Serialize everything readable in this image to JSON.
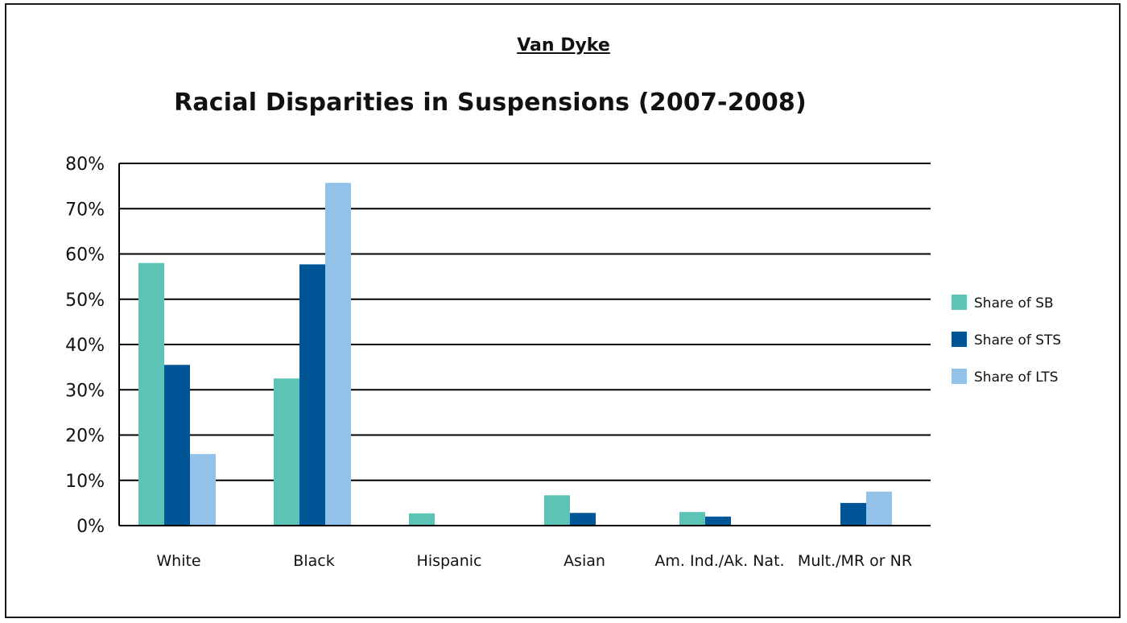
{
  "header": {
    "supertitle": "Van Dyke"
  },
  "chart_data": {
    "type": "bar",
    "title": "Racial Disparities in Suspensions (2007-2008)",
    "xlabel": "",
    "ylabel": "",
    "ylim": [
      0,
      80
    ],
    "yticks": [
      "0%",
      "10%",
      "20%",
      "30%",
      "40%",
      "50%",
      "60%",
      "70%",
      "80%"
    ],
    "grid": true,
    "legend_position": "right",
    "categories": [
      "White",
      "Black",
      "Hispanic",
      "Asian",
      "Am. Ind./Ak. Nat.",
      "Mult./MR or NR"
    ],
    "series": [
      {
        "name": "Share of SB",
        "color": "#5bc4b6",
        "values": [
          58,
          32.5,
          2.7,
          6.7,
          3.0,
          0
        ]
      },
      {
        "name": "Share of STS",
        "color": "#005596",
        "values": [
          35.5,
          57.7,
          0,
          2.8,
          2.0,
          5.0
        ]
      },
      {
        "name": "Share of LTS",
        "color": "#92c1e9",
        "values": [
          15.8,
          75.7,
          0,
          0,
          0,
          7.5
        ]
      }
    ]
  }
}
